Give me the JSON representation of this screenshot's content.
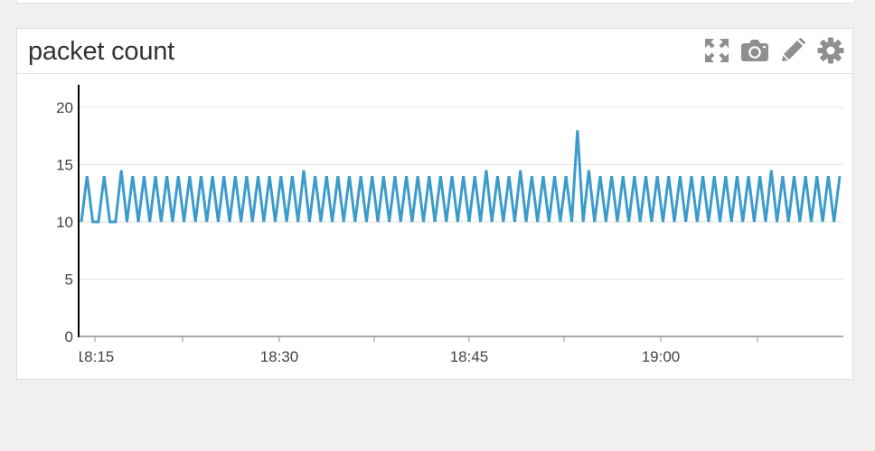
{
  "panel": {
    "title": "packet count"
  },
  "toolbar": {
    "icons": [
      "expand-icon",
      "camera-icon",
      "pencil-icon",
      "gear-icon"
    ]
  },
  "colors": {
    "line": "#3b9ccc",
    "grid": "#e3e3e3",
    "icon": "#8f8f8f",
    "axis": "#000000"
  },
  "chart_data": {
    "type": "line",
    "title": "packet count",
    "xlabel": "",
    "ylabel": "",
    "ylim": [
      0,
      22
    ],
    "y_ticks": [
      0,
      5,
      10,
      15,
      20
    ],
    "x_ticks": [
      "18:15",
      "18:30",
      "18:45",
      "19:00"
    ],
    "grid": true,
    "legend": "none",
    "series": [
      {
        "values": [
          10,
          14,
          10,
          10,
          14,
          10,
          10,
          14.5,
          10,
          14,
          10,
          14,
          10,
          14,
          10,
          14,
          10,
          14,
          10,
          14,
          10,
          14,
          10,
          14,
          10,
          14,
          10,
          14,
          10,
          14,
          10,
          14,
          10,
          14,
          10,
          14,
          10,
          14,
          10,
          14.5,
          10,
          14,
          10,
          14,
          10,
          14,
          10,
          14,
          10,
          14,
          10,
          14,
          10,
          14,
          10,
          14,
          10,
          14,
          10,
          14,
          10,
          14,
          10,
          14,
          10,
          14,
          10,
          14,
          10,
          14,
          10,
          14.5,
          10,
          14,
          10,
          14,
          10,
          14.5,
          10,
          14,
          10,
          14,
          10,
          14,
          10,
          14,
          10,
          18,
          10,
          14.5,
          10,
          14,
          10,
          14,
          10,
          14,
          10,
          14,
          10,
          14,
          10,
          14,
          10,
          14,
          10,
          14,
          10,
          14,
          10,
          14,
          10,
          14,
          10,
          14,
          10,
          14,
          10,
          14,
          10,
          14,
          10,
          14.5,
          10,
          14,
          10,
          14,
          10,
          14,
          10,
          14,
          10,
          14,
          10,
          14
        ]
      }
    ]
  }
}
